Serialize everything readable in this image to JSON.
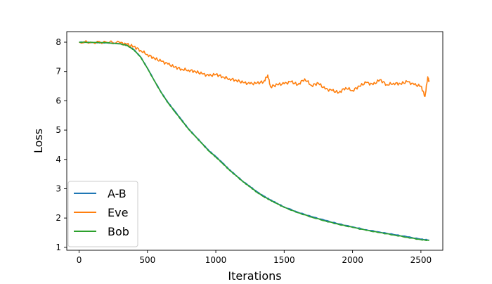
{
  "chart_data": {
    "type": "line",
    "xlabel": "Iterations",
    "ylabel": "Loss",
    "xlim": [
      -90,
      2660
    ],
    "ylim": [
      0.9,
      8.36
    ],
    "x_ticks": [
      0,
      500,
      1000,
      1500,
      2000,
      2500
    ],
    "y_ticks": [
      1,
      2,
      3,
      4,
      5,
      6,
      7,
      8
    ],
    "grid": false,
    "legend_position": "lower-left",
    "series": [
      {
        "name": "A-B",
        "color": "#1f77b4",
        "points": [
          [
            0,
            8.0
          ],
          [
            100,
            7.99
          ],
          [
            200,
            7.98
          ],
          [
            300,
            7.95
          ],
          [
            350,
            7.9
          ],
          [
            400,
            7.75
          ],
          [
            450,
            7.5
          ],
          [
            500,
            7.12
          ],
          [
            550,
            6.7
          ],
          [
            600,
            6.3
          ],
          [
            650,
            5.95
          ],
          [
            700,
            5.65
          ],
          [
            750,
            5.35
          ],
          [
            800,
            5.05
          ],
          [
            850,
            4.8
          ],
          [
            900,
            4.55
          ],
          [
            950,
            4.3
          ],
          [
            1000,
            4.1
          ],
          [
            1050,
            3.88
          ],
          [
            1100,
            3.65
          ],
          [
            1150,
            3.45
          ],
          [
            1200,
            3.25
          ],
          [
            1250,
            3.08
          ],
          [
            1300,
            2.9
          ],
          [
            1350,
            2.75
          ],
          [
            1400,
            2.62
          ],
          [
            1450,
            2.5
          ],
          [
            1500,
            2.38
          ],
          [
            1600,
            2.2
          ],
          [
            1700,
            2.05
          ],
          [
            1800,
            1.92
          ],
          [
            1900,
            1.8
          ],
          [
            2000,
            1.7
          ],
          [
            2100,
            1.6
          ],
          [
            2200,
            1.52
          ],
          [
            2300,
            1.44
          ],
          [
            2400,
            1.36
          ],
          [
            2500,
            1.28
          ],
          [
            2560,
            1.25
          ]
        ]
      },
      {
        "name": "Eve",
        "color": "#ff7f0e",
        "points": [
          [
            0,
            8.0
          ],
          [
            100,
            8.0
          ],
          [
            200,
            8.0
          ],
          [
            300,
            7.98
          ],
          [
            350,
            7.92
          ],
          [
            400,
            7.85
          ],
          [
            450,
            7.72
          ],
          [
            500,
            7.58
          ],
          [
            550,
            7.45
          ],
          [
            600,
            7.35
          ],
          [
            650,
            7.25
          ],
          [
            700,
            7.15
          ],
          [
            750,
            7.08
          ],
          [
            800,
            7.05
          ],
          [
            850,
            7.0
          ],
          [
            900,
            6.92
          ],
          [
            950,
            6.85
          ],
          [
            1000,
            6.9
          ],
          [
            1050,
            6.82
          ],
          [
            1100,
            6.75
          ],
          [
            1150,
            6.7
          ],
          [
            1200,
            6.62
          ],
          [
            1250,
            6.58
          ],
          [
            1300,
            6.6
          ],
          [
            1350,
            6.65
          ],
          [
            1380,
            6.88
          ],
          [
            1400,
            6.48
          ],
          [
            1450,
            6.55
          ],
          [
            1500,
            6.58
          ],
          [
            1550,
            6.65
          ],
          [
            1600,
            6.55
          ],
          [
            1650,
            6.75
          ],
          [
            1700,
            6.52
          ],
          [
            1750,
            6.6
          ],
          [
            1800,
            6.4
          ],
          [
            1850,
            6.35
          ],
          [
            1900,
            6.28
          ],
          [
            1950,
            6.45
          ],
          [
            2000,
            6.35
          ],
          [
            2050,
            6.5
          ],
          [
            2100,
            6.62
          ],
          [
            2150,
            6.55
          ],
          [
            2200,
            6.72
          ],
          [
            2250,
            6.55
          ],
          [
            2300,
            6.6
          ],
          [
            2350,
            6.58
          ],
          [
            2400,
            6.65
          ],
          [
            2450,
            6.55
          ],
          [
            2500,
            6.5
          ],
          [
            2530,
            6.15
          ],
          [
            2550,
            6.82
          ],
          [
            2560,
            6.65
          ]
        ]
      },
      {
        "name": "Bob",
        "color": "#2ca02c",
        "points": [
          [
            0,
            8.0
          ],
          [
            100,
            7.99
          ],
          [
            200,
            7.98
          ],
          [
            300,
            7.94
          ],
          [
            350,
            7.89
          ],
          [
            400,
            7.74
          ],
          [
            450,
            7.49
          ],
          [
            500,
            7.1
          ],
          [
            550,
            6.68
          ],
          [
            600,
            6.28
          ],
          [
            650,
            5.93
          ],
          [
            700,
            5.63
          ],
          [
            750,
            5.33
          ],
          [
            800,
            5.03
          ],
          [
            850,
            4.78
          ],
          [
            900,
            4.53
          ],
          [
            950,
            4.28
          ],
          [
            1000,
            4.08
          ],
          [
            1050,
            3.86
          ],
          [
            1100,
            3.63
          ],
          [
            1150,
            3.43
          ],
          [
            1200,
            3.23
          ],
          [
            1250,
            3.06
          ],
          [
            1300,
            2.88
          ],
          [
            1350,
            2.73
          ],
          [
            1400,
            2.6
          ],
          [
            1450,
            2.48
          ],
          [
            1500,
            2.36
          ],
          [
            1600,
            2.18
          ],
          [
            1700,
            2.03
          ],
          [
            1800,
            1.9
          ],
          [
            1900,
            1.78
          ],
          [
            2000,
            1.68
          ],
          [
            2100,
            1.58
          ],
          [
            2200,
            1.5
          ],
          [
            2300,
            1.42
          ],
          [
            2400,
            1.34
          ],
          [
            2500,
            1.26
          ],
          [
            2560,
            1.23
          ]
        ]
      }
    ]
  }
}
